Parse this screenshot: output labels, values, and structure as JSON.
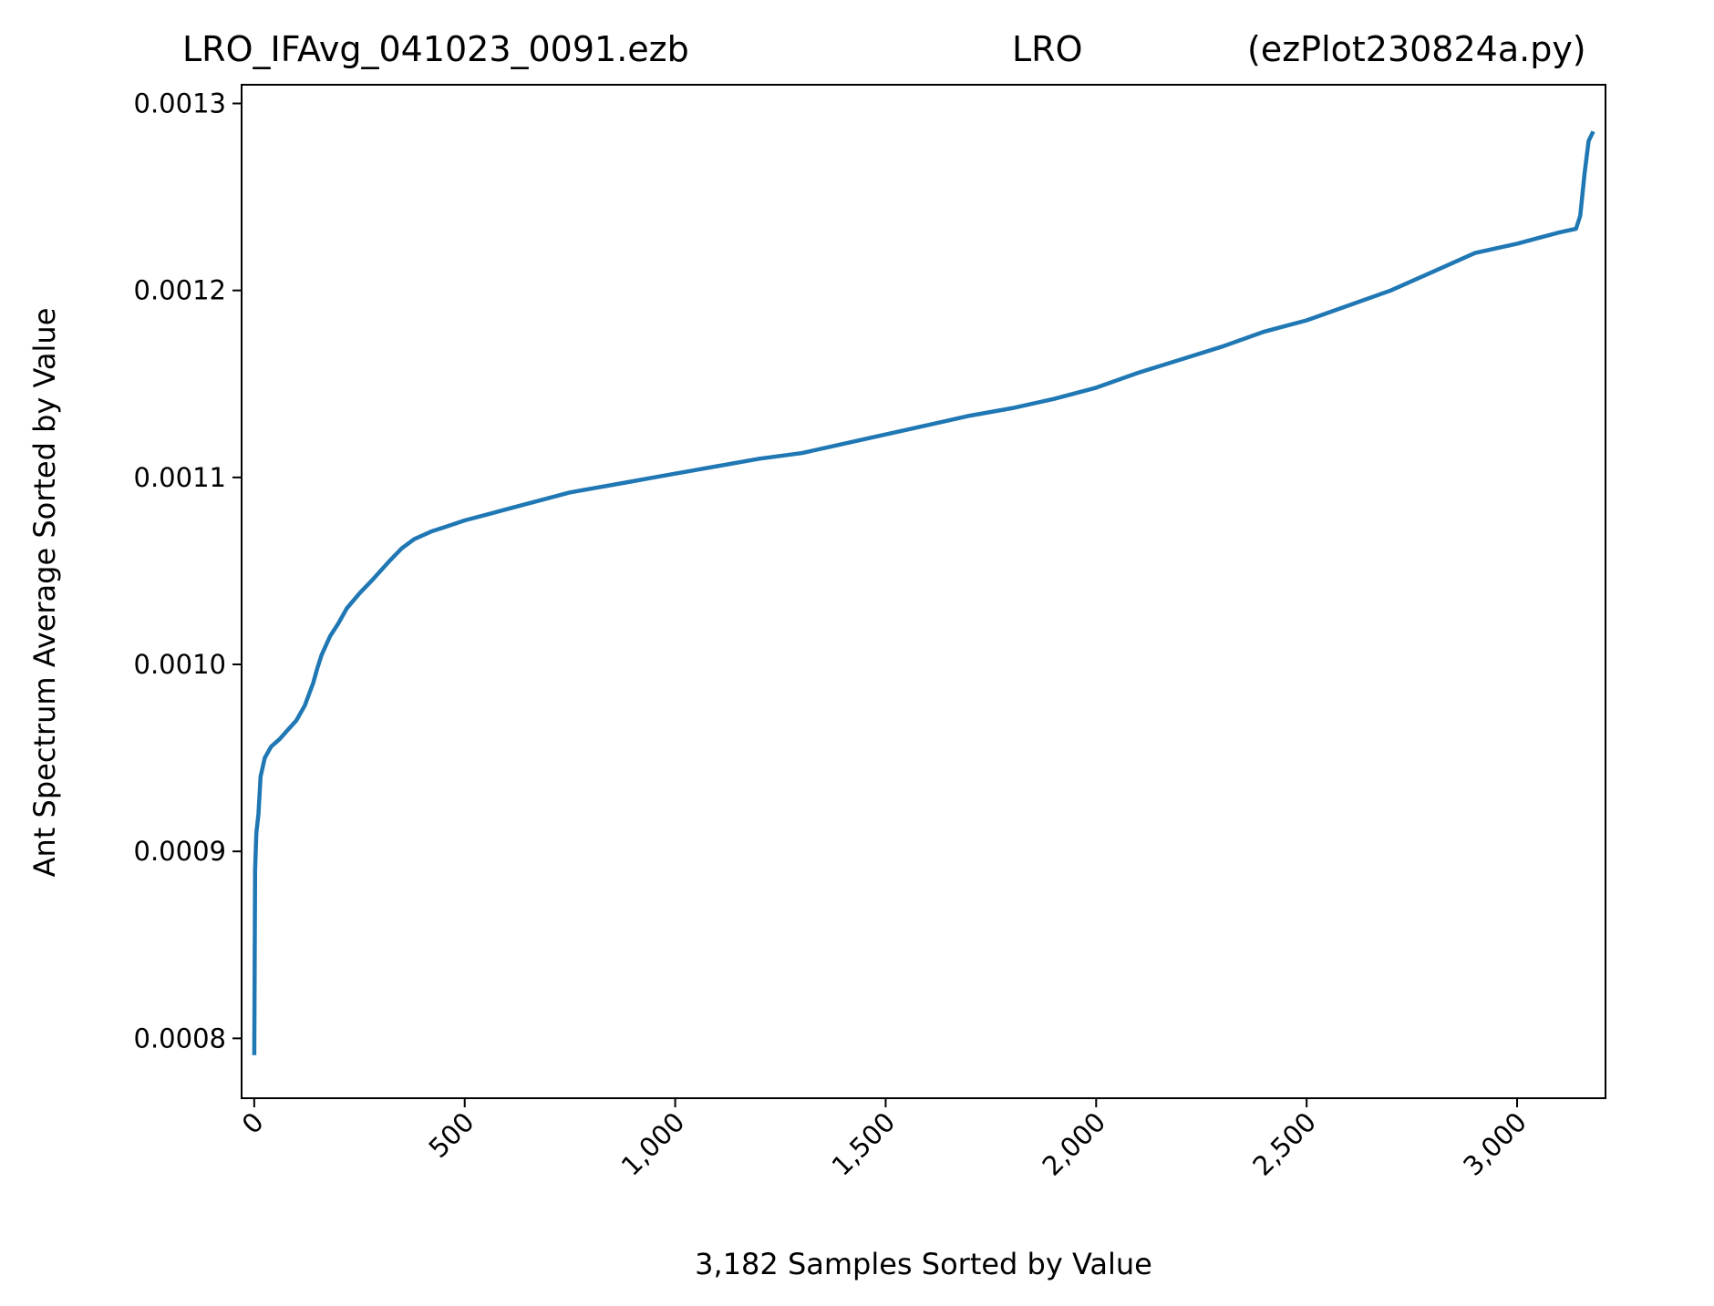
{
  "chart_data": {
    "type": "line",
    "title_left": "LRO_IFAvg_041023_0091.ezb",
    "title_center": "LRO",
    "title_right": "(ezPlot230824a.py)",
    "xlabel": "3,182 Samples Sorted by Value",
    "ylabel": "Ant Spectrum Average Sorted by Value",
    "xlim": [
      -30,
      3210
    ],
    "ylim": [
      0.000768,
      0.00131
    ],
    "xticks": [
      0,
      500,
      1000,
      1500,
      2000,
      2500,
      3000
    ],
    "xtick_labels": [
      "0",
      "500",
      "1,000",
      "1,500",
      "2,000",
      "2,500",
      "3,000"
    ],
    "yticks": [
      0.0008,
      0.0009,
      0.001,
      0.0011,
      0.0012,
      0.0013
    ],
    "ytick_labels": [
      "0.0008",
      "0.0009",
      "0.0010",
      "0.0011",
      "0.0012",
      "0.0013"
    ],
    "grid": false,
    "line_color": "#1f77b4",
    "series": [
      {
        "x": [
          0,
          2,
          5,
          10,
          15,
          25,
          40,
          60,
          80,
          100,
          120,
          140,
          150,
          160,
          180,
          200,
          220,
          250,
          280,
          300,
          320,
          350,
          380,
          420,
          460,
          500,
          550,
          600,
          650,
          700,
          750,
          800,
          850,
          900,
          950,
          1000,
          1100,
          1200,
          1300,
          1400,
          1500,
          1600,
          1700,
          1800,
          1900,
          2000,
          2100,
          2200,
          2300,
          2400,
          2500,
          2600,
          2700,
          2800,
          2900,
          3000,
          3050,
          3100,
          3140,
          3150,
          3160,
          3170,
          3181
        ],
        "y": [
          0.000791,
          0.00089,
          0.00091,
          0.00092,
          0.00094,
          0.00095,
          0.000956,
          0.00096,
          0.000965,
          0.00097,
          0.000978,
          0.00099,
          0.000998,
          0.001005,
          0.001015,
          0.001022,
          0.00103,
          0.001038,
          0.001045,
          0.00105,
          0.001055,
          0.001062,
          0.001067,
          0.001071,
          0.001074,
          0.001077,
          0.00108,
          0.001083,
          0.001086,
          0.001089,
          0.001092,
          0.001094,
          0.001096,
          0.001098,
          0.0011,
          0.001102,
          0.001106,
          0.00111,
          0.001113,
          0.001118,
          0.001123,
          0.001128,
          0.001133,
          0.001137,
          0.001142,
          0.001148,
          0.001156,
          0.001163,
          0.00117,
          0.001178,
          0.001184,
          0.001192,
          0.0012,
          0.00121,
          0.00122,
          0.001225,
          0.001228,
          0.001231,
          0.001233,
          0.00124,
          0.001262,
          0.00128,
          0.001285
        ]
      }
    ]
  }
}
